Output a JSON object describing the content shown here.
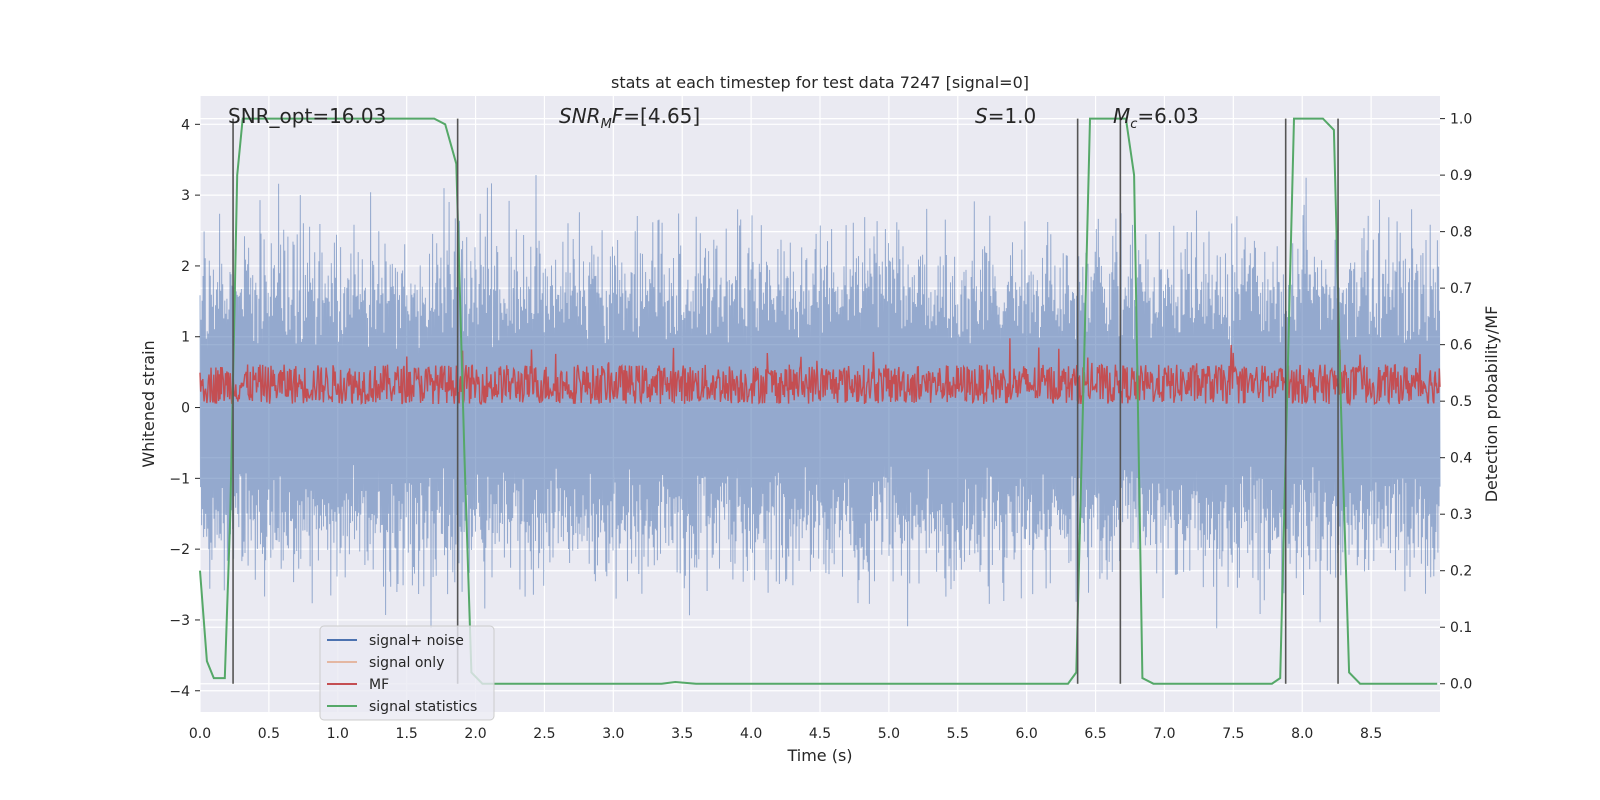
{
  "chart_data": {
    "type": "line",
    "title": "stats at each timestep for test data 7247 [signal=0]",
    "xlabel": "Time (s)",
    "ylabel": "Whitened strain",
    "ylabel_right": "Detection probability/MF",
    "xlim": [
      0.0,
      9.0
    ],
    "ylim": [
      -4.3,
      4.4
    ],
    "ylim_right": [
      -0.05,
      1.04
    ],
    "x_ticks": [
      "0.0",
      "0.5",
      "1.0",
      "1.5",
      "2.0",
      "2.5",
      "3.0",
      "3.5",
      "4.0",
      "4.5",
      "5.0",
      "5.5",
      "6.0",
      "6.5",
      "7.0",
      "7.5",
      "8.0",
      "8.5"
    ],
    "y_ticks_left": [
      "4",
      "3",
      "2",
      "1",
      "0",
      "−1",
      "−2",
      "−3",
      "−4"
    ],
    "y_ticks_right": [
      "1.0",
      "0.9",
      "0.8",
      "0.7",
      "0.6",
      "0.5",
      "0.4",
      "0.3",
      "0.2",
      "0.1",
      "0.0"
    ],
    "grid": true,
    "legend_position": "lower-left",
    "annotations": {
      "snr_opt": "SNR_opt=16.03",
      "snr_mf_prefix": "SNR",
      "snr_mf_sub": "M",
      "snr_mf_suffix": "F",
      "snr_mf_value": "=[4.65]",
      "s_var": "S",
      "s_value": "=1.0",
      "mc_var": "M",
      "mc_sub": "c",
      "mc_value": "=6.03"
    },
    "series": [
      {
        "name": "signal+ noise",
        "color": "#4c72b0",
        "description": "noise-dominated whitened strain, roughly within ±3.7"
      },
      {
        "name": "signal only",
        "color": "#dd8452",
        "values": []
      },
      {
        "name": "MF",
        "color": "#c44e52",
        "axis": "right",
        "typical_range": [
          0.5,
          0.6
        ]
      },
      {
        "name": "signal statistics",
        "color": "#55a868",
        "axis": "right",
        "points": [
          [
            0.0,
            0.2
          ],
          [
            0.05,
            0.04
          ],
          [
            0.1,
            0.01
          ],
          [
            0.18,
            0.01
          ],
          [
            0.22,
            0.3
          ],
          [
            0.27,
            0.9
          ],
          [
            0.31,
            1.0
          ],
          [
            1.7,
            1.0
          ],
          [
            1.78,
            0.99
          ],
          [
            1.86,
            0.92
          ],
          [
            1.92,
            0.4
          ],
          [
            1.97,
            0.02
          ],
          [
            2.05,
            0.0
          ],
          [
            3.35,
            0.0
          ],
          [
            3.45,
            0.003
          ],
          [
            3.6,
            0.0
          ],
          [
            6.3,
            0.0
          ],
          [
            6.36,
            0.02
          ],
          [
            6.42,
            0.6
          ],
          [
            6.46,
            1.0
          ],
          [
            6.72,
            1.0
          ],
          [
            6.78,
            0.9
          ],
          [
            6.84,
            0.01
          ],
          [
            6.92,
            0.0
          ],
          [
            7.78,
            0.0
          ],
          [
            7.84,
            0.01
          ],
          [
            7.9,
            0.6
          ],
          [
            7.94,
            1.0
          ],
          [
            8.15,
            1.0
          ],
          [
            8.23,
            0.98
          ],
          [
            8.28,
            0.5
          ],
          [
            8.34,
            0.02
          ],
          [
            8.42,
            0.0
          ],
          [
            8.98,
            0.0
          ]
        ]
      }
    ],
    "vertical_markers": [
      0.24,
      1.87,
      6.37,
      6.68,
      7.88,
      8.26
    ],
    "noise_seed": 7247
  }
}
